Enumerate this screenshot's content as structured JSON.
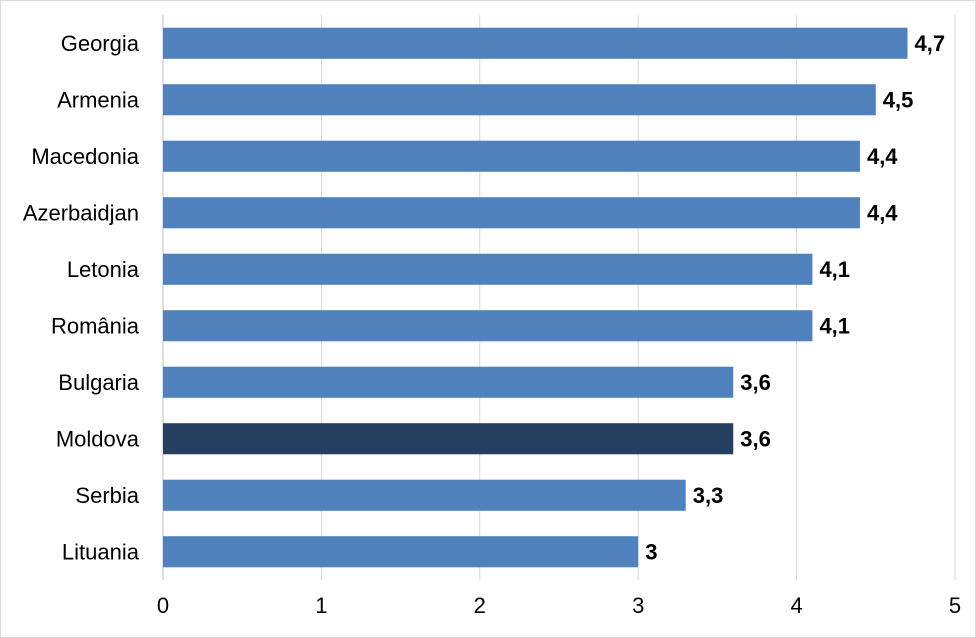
{
  "chart_data": {
    "type": "bar",
    "orientation": "horizontal",
    "title": "",
    "xlabel": "",
    "ylabel": "",
    "categories": [
      "Georgia",
      "Armenia",
      "Macedonia",
      "Azerbaidjan",
      "Letonia",
      "România",
      "Bulgaria",
      "Moldova",
      "Serbia",
      "Lituania"
    ],
    "values": [
      4.7,
      4.5,
      4.4,
      4.4,
      4.1,
      4.1,
      3.6,
      3.6,
      3.3,
      3
    ],
    "value_labels": [
      "4,7",
      "4,5",
      "4,4",
      "4,4",
      "4,1",
      "4,1",
      "3,6",
      "3,6",
      "3,3",
      "3"
    ],
    "xlim": [
      0,
      5
    ],
    "xticks": [
      0,
      1,
      2,
      3,
      4,
      5
    ],
    "xtick_labels": [
      "0",
      "1",
      "2",
      "3",
      "4",
      "5"
    ],
    "grid": true,
    "legend": "none",
    "colors": {
      "bar": "#4f81bd",
      "highlight_bar": "#243f60",
      "grid": "#d9d9d9",
      "axis": "#bfbfbf"
    },
    "highlight_category": "Moldova"
  }
}
